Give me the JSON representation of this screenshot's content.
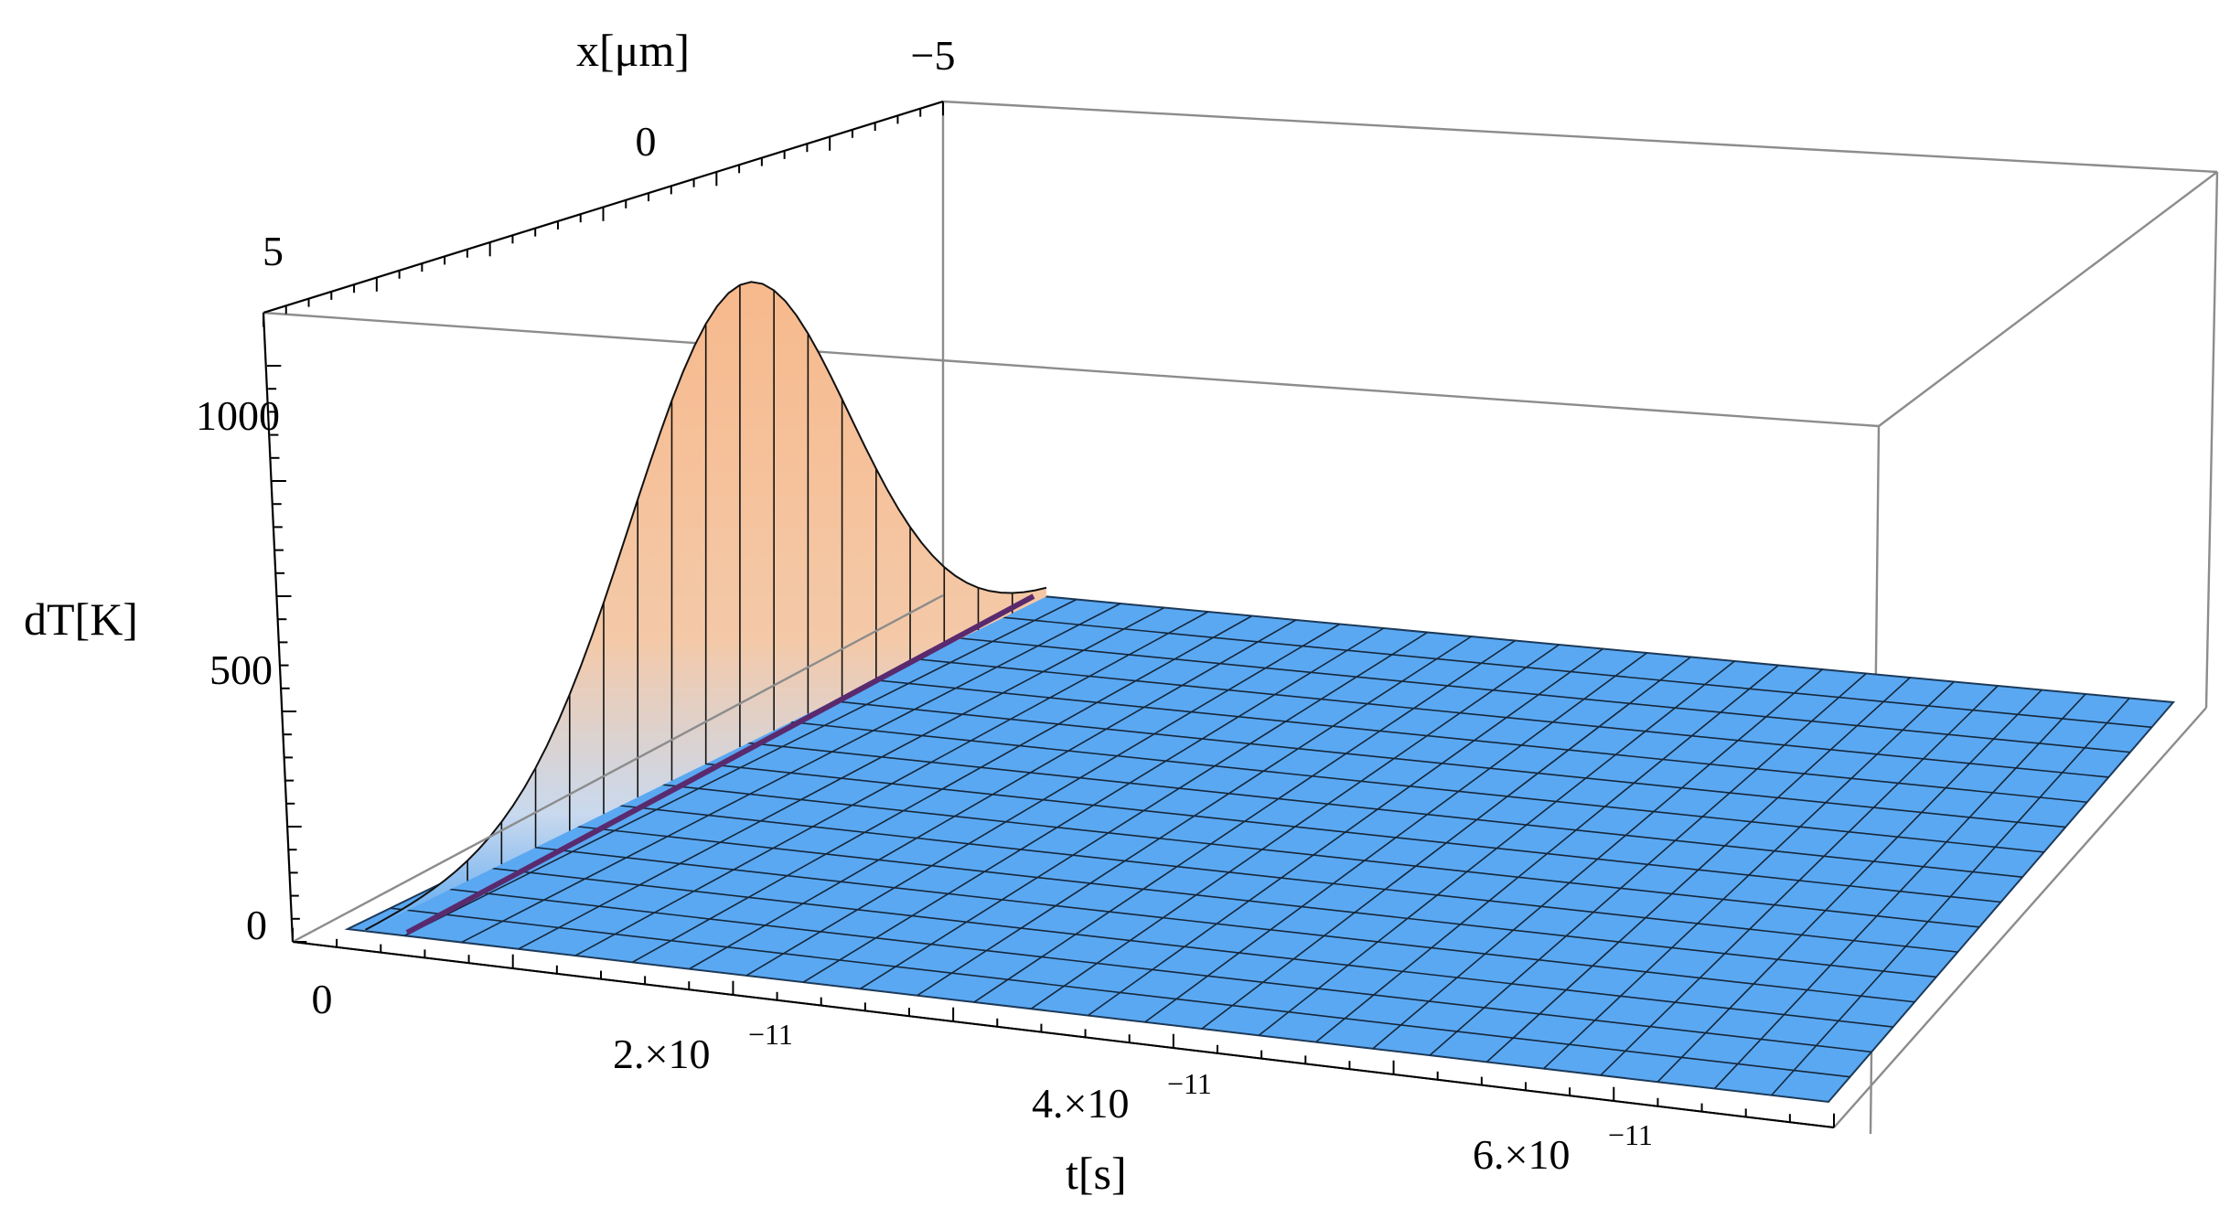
{
  "chart_data": {
    "type": "surface3d",
    "xlabel": "t[s]",
    "ylabel": "x[μm]",
    "zlabel": "dT[K]",
    "t_ticks": [
      {
        "value": 0,
        "label": "0",
        "sup": ""
      },
      {
        "value": 2e-11,
        "label": "2.×10",
        "sup": "−11"
      },
      {
        "value": 4e-11,
        "label": "4.×10",
        "sup": "−11"
      },
      {
        "value": 6e-11,
        "label": "6.×10",
        "sup": "−11"
      }
    ],
    "x_ticks": [
      {
        "value": -5,
        "label": "−5"
      },
      {
        "value": 0,
        "label": "0"
      },
      {
        "value": 5,
        "label": "5"
      }
    ],
    "z_ticks": [
      {
        "value": 0,
        "label": "0"
      },
      {
        "value": 500,
        "label": "500"
      },
      {
        "value": 1000,
        "label": "1000"
      }
    ],
    "t_range": [
      0,
      7e-11
    ],
    "x_range": [
      -7,
      7
    ],
    "z_range": [
      0,
      1200
    ],
    "peak_dT": 1280,
    "peak_x": 0,
    "pulse_end_t": 2e-12,
    "colors": {
      "surface_low": "#5aa8f2",
      "surface_high": "#f7b98c",
      "mesh": "#111111",
      "pulse_line": "#5a2a6e",
      "box": "#8c8c8c"
    }
  }
}
